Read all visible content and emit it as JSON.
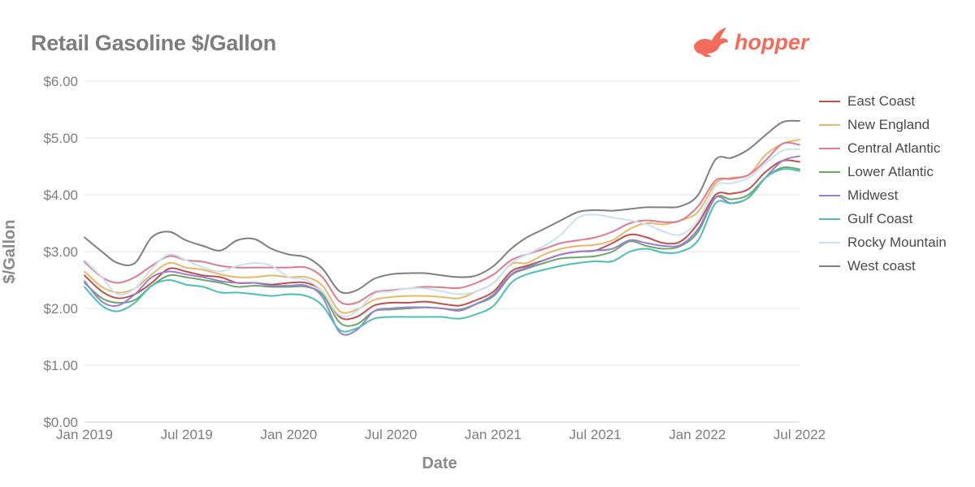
{
  "header": {
    "title": "Retail Gasoline $/Gallon",
    "logo_text": "hopper"
  },
  "colors": {
    "brand": "#f26b5b",
    "grid": "#e3e3e3",
    "text": "#7d7d7d"
  },
  "chart_data": {
    "type": "line",
    "title": "Retail Gasoline $/Gallon",
    "xlabel": "Date",
    "ylabel": "$/Gallon",
    "ylim": [
      0,
      6
    ],
    "y_ticks": [
      "$0.00",
      "$1.00",
      "$2.00",
      "$3.00",
      "$4.00",
      "$5.00",
      "$6.00"
    ],
    "x_ticks": [
      "Jan 2019",
      "Jul 2019",
      "Jan 2020",
      "Jul 2020",
      "Jan 2021",
      "Jul 2021",
      "Jan 2022",
      "Jul 2022"
    ],
    "x_range": [
      "2019-01-01",
      "2022-07-01"
    ],
    "grid": true,
    "legend_position": "right",
    "x": [
      "2019-01",
      "2019-02",
      "2019-03",
      "2019-04",
      "2019-05",
      "2019-06",
      "2019-07",
      "2019-08",
      "2019-09",
      "2019-10",
      "2019-11",
      "2019-12",
      "2020-01",
      "2020-02",
      "2020-03",
      "2020-04",
      "2020-05",
      "2020-06",
      "2020-07",
      "2020-08",
      "2020-09",
      "2020-10",
      "2020-11",
      "2020-12",
      "2021-01",
      "2021-02",
      "2021-03",
      "2021-04",
      "2021-05",
      "2021-06",
      "2021-07",
      "2021-08",
      "2021-09",
      "2021-10",
      "2021-11",
      "2021-12",
      "2022-01",
      "2022-02",
      "2022-03",
      "2022-04",
      "2022-05",
      "2022-06",
      "2022-07"
    ],
    "series": [
      {
        "name": "East Coast",
        "color": "#c0504d",
        "values": [
          2.58,
          2.3,
          2.18,
          2.25,
          2.45,
          2.7,
          2.65,
          2.58,
          2.55,
          2.45,
          2.45,
          2.42,
          2.45,
          2.45,
          2.3,
          1.85,
          1.85,
          2.05,
          2.1,
          2.1,
          2.12,
          2.08,
          2.05,
          2.15,
          2.3,
          2.65,
          2.75,
          2.85,
          2.95,
          3.0,
          3.02,
          3.15,
          3.3,
          3.25,
          3.15,
          3.18,
          3.5,
          4.0,
          4.02,
          4.1,
          4.4,
          4.6,
          4.58
        ]
      },
      {
        "name": "New England",
        "color": "#e8b86a",
        "values": [
          2.65,
          2.38,
          2.28,
          2.35,
          2.6,
          2.8,
          2.72,
          2.68,
          2.6,
          2.55,
          2.55,
          2.58,
          2.55,
          2.55,
          2.4,
          1.95,
          1.98,
          2.15,
          2.2,
          2.22,
          2.22,
          2.2,
          2.18,
          2.3,
          2.45,
          2.78,
          2.8,
          2.95,
          3.05,
          3.1,
          3.12,
          3.2,
          3.4,
          3.5,
          3.48,
          3.55,
          3.7,
          4.2,
          4.3,
          4.35,
          4.7,
          4.9,
          4.97
        ]
      },
      {
        "name": "Central Atlantic",
        "color": "#e07a8e",
        "values": [
          2.82,
          2.55,
          2.45,
          2.55,
          2.75,
          2.92,
          2.85,
          2.82,
          2.75,
          2.72,
          2.72,
          2.72,
          2.72,
          2.72,
          2.55,
          2.12,
          2.1,
          2.28,
          2.32,
          2.35,
          2.38,
          2.37,
          2.36,
          2.45,
          2.6,
          2.85,
          2.95,
          3.05,
          3.15,
          3.2,
          3.25,
          3.35,
          3.5,
          3.55,
          3.52,
          3.55,
          3.8,
          4.25,
          4.28,
          4.35,
          4.6,
          4.9,
          4.88
        ]
      },
      {
        "name": "Lower Atlantic",
        "color": "#6aa86a",
        "values": [
          2.45,
          2.18,
          2.1,
          2.15,
          2.4,
          2.58,
          2.55,
          2.5,
          2.45,
          2.38,
          2.4,
          2.38,
          2.38,
          2.38,
          2.25,
          1.75,
          1.72,
          1.95,
          1.98,
          2.0,
          2.02,
          2.0,
          1.98,
          2.08,
          2.22,
          2.58,
          2.7,
          2.8,
          2.88,
          2.9,
          2.92,
          3.0,
          3.18,
          3.1,
          3.05,
          3.1,
          3.35,
          3.95,
          3.92,
          4.0,
          4.3,
          4.48,
          4.45
        ]
      },
      {
        "name": "Midwest",
        "color": "#9a7fd1",
        "values": [
          2.48,
          2.12,
          2.05,
          2.25,
          2.55,
          2.65,
          2.6,
          2.55,
          2.48,
          2.45,
          2.45,
          2.4,
          2.4,
          2.4,
          2.2,
          1.58,
          1.62,
          1.95,
          2.0,
          2.02,
          2.02,
          2.0,
          1.96,
          2.08,
          2.25,
          2.6,
          2.72,
          2.85,
          2.95,
          3.0,
          3.02,
          3.05,
          3.2,
          3.15,
          3.1,
          3.12,
          3.4,
          3.95,
          3.85,
          3.95,
          4.3,
          4.6,
          4.68
        ]
      },
      {
        "name": "Gulf Coast",
        "color": "#4bbfb5",
        "values": [
          2.38,
          2.05,
          1.95,
          2.1,
          2.4,
          2.5,
          2.42,
          2.38,
          2.28,
          2.28,
          2.25,
          2.22,
          2.25,
          2.22,
          2.05,
          1.62,
          1.65,
          1.82,
          1.85,
          1.85,
          1.85,
          1.85,
          1.82,
          1.9,
          2.05,
          2.45,
          2.6,
          2.68,
          2.75,
          2.8,
          2.83,
          2.83,
          3.0,
          3.05,
          2.98,
          3.0,
          3.2,
          3.85,
          3.85,
          3.95,
          4.3,
          4.45,
          4.42
        ]
      },
      {
        "name": "Rocky Mountain",
        "color": "#c9e2f2",
        "values": [
          2.85,
          2.55,
          2.25,
          2.35,
          2.7,
          2.95,
          2.85,
          2.72,
          2.65,
          2.75,
          2.8,
          2.75,
          2.55,
          2.5,
          2.3,
          1.88,
          1.95,
          2.25,
          2.3,
          2.35,
          2.35,
          2.3,
          2.25,
          2.3,
          2.45,
          2.8,
          2.95,
          3.1,
          3.3,
          3.6,
          3.65,
          3.6,
          3.55,
          3.48,
          3.35,
          3.3,
          3.55,
          4.15,
          4.2,
          4.3,
          4.55,
          4.78,
          4.8
        ]
      },
      {
        "name": "West coast",
        "color": "#7f7f7f",
        "values": [
          3.25,
          3.0,
          2.8,
          2.8,
          3.25,
          3.35,
          3.2,
          3.1,
          3.02,
          3.2,
          3.22,
          3.05,
          2.95,
          2.9,
          2.7,
          2.3,
          2.32,
          2.52,
          2.6,
          2.62,
          2.62,
          2.58,
          2.55,
          2.58,
          2.75,
          3.05,
          3.25,
          3.4,
          3.55,
          3.7,
          3.73,
          3.72,
          3.75,
          3.78,
          3.78,
          3.8,
          4.0,
          4.62,
          4.65,
          4.8,
          5.05,
          5.28,
          5.3
        ]
      }
    ]
  }
}
